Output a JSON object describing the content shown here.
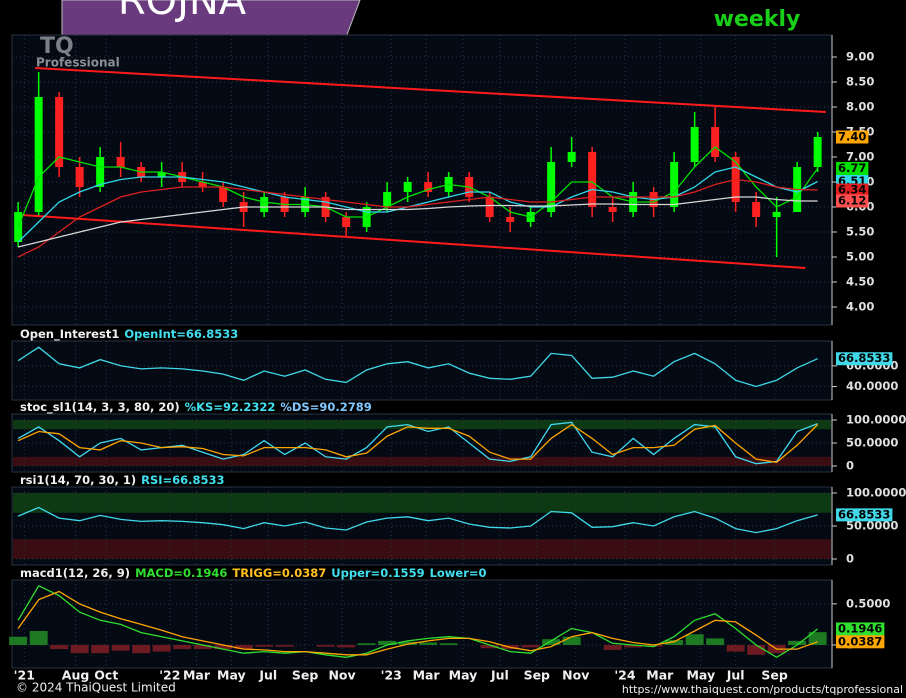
{
  "header": {
    "symbol": "ROJNA",
    "period": "weekly"
  },
  "logo": {
    "mark": "TQ",
    "text": "Professional"
  },
  "footer": {
    "copyright": "© 2024 ThaiQuest Limited",
    "url": "https://www.thaiquest.com/products/tqprofessional"
  },
  "chart_data": [
    {
      "type": "candlestick",
      "up_color": "#00ff00",
      "down_color": "#ff2020",
      "close_label": "7.40",
      "close_label_color": "#ffa500",
      "x": [
        0,
        1,
        2,
        3,
        4,
        5,
        6,
        7,
        8,
        9,
        10,
        11,
        12,
        13,
        14,
        15,
        16,
        17,
        18,
        19,
        20,
        21,
        22,
        23,
        24,
        25,
        26,
        27,
        28,
        29,
        30,
        31,
        32,
        33,
        34,
        35,
        36,
        37,
        38,
        39
      ],
      "xlim": [
        -0.3,
        39.7
      ],
      "ylim": [
        3.64,
        9.44
      ],
      "yticks": [
        {
          "value": 9,
          "label": "9.00"
        },
        {
          "value": 8.5,
          "label": "8.50"
        },
        {
          "value": 8,
          "label": "8.00"
        },
        {
          "value": 7.5,
          "label": "7.50"
        },
        {
          "value": 7,
          "label": "7.00"
        },
        {
          "value": 6.5,
          "label": "6.50"
        },
        {
          "value": 6,
          "label": "6.00"
        },
        {
          "value": 5.5,
          "label": "5.50"
        },
        {
          "value": 5,
          "label": "5.00"
        },
        {
          "value": 4.5,
          "label": "4.50"
        },
        {
          "value": 4,
          "label": "4.00"
        }
      ],
      "open": [
        5.3,
        5.9,
        8.2,
        6.8,
        6.4,
        7.0,
        6.8,
        6.6,
        6.7,
        6.5,
        6.4,
        6.1,
        5.9,
        6.2,
        5.9,
        6.2,
        5.8,
        5.6,
        6.0,
        6.3,
        6.5,
        6.3,
        6.6,
        6.2,
        5.8,
        5.7,
        5.9,
        6.9,
        7.1,
        6.0,
        5.9,
        6.3,
        6.0,
        6.9,
        7.6,
        7.0,
        6.1,
        5.8,
        5.9,
        6.8
      ],
      "high": [
        6.1,
        8.7,
        8.3,
        7.0,
        7.2,
        7.3,
        6.9,
        6.9,
        6.9,
        6.7,
        6.5,
        6.3,
        6.3,
        6.3,
        6.4,
        6.3,
        5.9,
        6.1,
        6.5,
        6.6,
        6.7,
        6.7,
        6.7,
        6.3,
        6.0,
        6.0,
        7.2,
        7.4,
        7.2,
        6.2,
        6.5,
        6.4,
        7.1,
        7.9,
        8.0,
        7.1,
        6.3,
        6.2,
        6.9,
        7.5
      ],
      "low": [
        5.2,
        5.8,
        6.6,
        6.2,
        6.3,
        6.6,
        6.5,
        6.4,
        6.4,
        6.3,
        6.0,
        5.6,
        5.8,
        5.8,
        5.8,
        5.7,
        5.4,
        5.5,
        5.9,
        6.1,
        6.2,
        6.2,
        6.1,
        5.7,
        5.5,
        5.6,
        5.8,
        6.8,
        5.8,
        5.7,
        5.8,
        5.8,
        5.9,
        6.8,
        6.9,
        5.9,
        5.6,
        5.0,
        5.9,
        6.7
      ],
      "close": [
        5.9,
        8.2,
        6.8,
        6.4,
        7.0,
        6.8,
        6.6,
        6.7,
        6.5,
        6.4,
        6.1,
        5.9,
        6.2,
        5.9,
        6.2,
        5.8,
        5.6,
        6.0,
        6.3,
        6.5,
        6.3,
        6.6,
        6.2,
        5.8,
        5.7,
        5.9,
        6.9,
        7.1,
        6.0,
        5.9,
        6.3,
        6.0,
        6.9,
        7.6,
        7.0,
        6.1,
        5.8,
        5.9,
        6.8,
        7.4
      ],
      "series": [
        {
          "color": "#00e000",
          "last_label": "6.77",
          "values": [
            5.6,
            6.6,
            7.0,
            6.9,
            6.8,
            6.8,
            6.7,
            6.7,
            6.6,
            6.5,
            6.4,
            6.2,
            6.1,
            6.05,
            6.05,
            6.0,
            5.8,
            5.8,
            6.0,
            6.2,
            6.35,
            6.45,
            6.4,
            6.2,
            5.9,
            5.8,
            6.1,
            6.5,
            6.5,
            6.2,
            6.1,
            6.1,
            6.3,
            6.8,
            7.2,
            6.9,
            6.4,
            6.0,
            6.2,
            6.77
          ]
        },
        {
          "color": "#30d8e8",
          "last_label": "6.51",
          "values": [
            5.3,
            5.7,
            6.1,
            6.3,
            6.45,
            6.55,
            6.6,
            6.6,
            6.6,
            6.55,
            6.5,
            6.4,
            6.3,
            6.2,
            6.15,
            6.1,
            6.0,
            5.9,
            5.9,
            6.0,
            6.1,
            6.2,
            6.3,
            6.3,
            6.1,
            6.0,
            6.0,
            6.2,
            6.35,
            6.3,
            6.2,
            6.15,
            6.2,
            6.4,
            6.7,
            6.8,
            6.6,
            6.4,
            6.3,
            6.51
          ]
        },
        {
          "color": "#e02020",
          "last_label": "6.34",
          "values": [
            5.0,
            5.2,
            5.5,
            5.8,
            6.0,
            6.2,
            6.3,
            6.35,
            6.4,
            6.4,
            6.4,
            6.35,
            6.3,
            6.25,
            6.2,
            6.15,
            6.1,
            6.05,
            6.0,
            6.0,
            6.05,
            6.1,
            6.15,
            6.2,
            6.15,
            6.1,
            6.1,
            6.15,
            6.2,
            6.2,
            6.2,
            6.2,
            6.2,
            6.3,
            6.45,
            6.55,
            6.5,
            6.4,
            6.35,
            6.34
          ]
        },
        {
          "color": "#d8d8d8",
          "last_label": "6.12",
          "label_color": "#ff5050",
          "values": [
            5.2,
            5.3,
            5.4,
            5.5,
            5.6,
            5.7,
            5.75,
            5.8,
            5.85,
            5.9,
            5.95,
            6.0,
            6.0,
            6.0,
            6.0,
            6.0,
            5.95,
            5.95,
            5.95,
            5.95,
            5.97,
            6.0,
            6.02,
            6.03,
            6.03,
            6.02,
            6.02,
            6.04,
            6.06,
            6.06,
            6.05,
            6.05,
            6.05,
            6.1,
            6.15,
            6.2,
            6.2,
            6.15,
            6.12,
            6.12
          ]
        }
      ],
      "trendlines": [
        {
          "color": "#ff1a1a",
          "x": [
            0.83,
            39.4
          ],
          "y": [
            8.78,
            7.9
          ]
        },
        {
          "color": "#ff1a1a",
          "x": [
            0.2,
            38.4
          ],
          "y": [
            5.84,
            4.78
          ]
        }
      ]
    },
    {
      "type": "line",
      "title_parts": [
        {
          "text": "Open_Interest1",
          "color": "#f0f0f0"
        },
        {
          "text": "OpenInt=66.8533",
          "color": "#40e0f0"
        }
      ],
      "ylim": [
        27,
        84
      ],
      "yticks": [
        {
          "value": 60,
          "label": "60.0000"
        },
        {
          "value": 40,
          "label": "40.0000"
        }
      ],
      "series": [
        {
          "color": "#40d8e8",
          "box": true,
          "values": [
            65,
            78,
            62,
            58,
            66,
            60,
            57,
            58,
            57,
            55,
            52,
            46,
            55,
            50,
            56,
            47,
            44,
            56,
            62,
            64,
            58,
            62,
            53,
            48,
            47,
            50,
            72,
            70,
            48,
            49,
            55,
            50,
            64,
            72,
            62,
            46,
            40,
            46,
            58,
            66.8533
          ]
        }
      ]
    },
    {
      "type": "line",
      "title_parts": [
        {
          "text": "stoc_sl1(14, 3, 3, 80, 20)",
          "color": "#f0f0f0"
        },
        {
          "text": "%KS=92.2322",
          "color": "#40e0f0"
        },
        {
          "text": "%DS=90.2789",
          "color": "#80c8ff"
        }
      ],
      "ylim": [
        -13,
        113
      ],
      "yticks": [
        {
          "value": 100,
          "label": "100.0000"
        },
        {
          "value": 50,
          "label": "50.0000"
        },
        0
      ],
      "bands": [
        {
          "from": 80,
          "to": 100,
          "color": "#0d3a12"
        },
        {
          "from": 0,
          "to": 20,
          "color": "#3a0d12"
        }
      ],
      "series": [
        {
          "color": "#40d8f0",
          "values": [
            60,
            85,
            55,
            20,
            50,
            60,
            35,
            40,
            45,
            30,
            15,
            25,
            55,
            25,
            50,
            20,
            15,
            40,
            85,
            90,
            75,
            85,
            50,
            15,
            10,
            20,
            90,
            95,
            30,
            20,
            60,
            25,
            60,
            90,
            85,
            20,
            5,
            10,
            75,
            92.2322
          ]
        },
        {
          "color": "#ffa500",
          "values": [
            55,
            75,
            70,
            40,
            35,
            55,
            50,
            40,
            42,
            38,
            25,
            22,
            40,
            40,
            40,
            35,
            20,
            28,
            65,
            85,
            82,
            82,
            65,
            30,
            15,
            15,
            60,
            90,
            60,
            25,
            40,
            40,
            45,
            80,
            88,
            50,
            15,
            8,
            45,
            90.2789
          ]
        }
      ]
    },
    {
      "type": "line",
      "title_parts": [
        {
          "text": "rsi1(14, 70, 30, 1)",
          "color": "#f0f0f0"
        },
        {
          "text": "RSI=66.8533",
          "color": "#40e0f0"
        }
      ],
      "ylim": [
        -9.1,
        109.1
      ],
      "yticks": [
        {
          "value": 100,
          "label": "100.0000"
        },
        {
          "value": 50,
          "label": "50.0000"
        },
        0
      ],
      "bands": [
        {
          "from": 70,
          "to": 100,
          "color": "#0d3a12"
        },
        {
          "from": 0,
          "to": 30,
          "color": "#3a0d12"
        }
      ],
      "series": [
        {
          "color": "#40d8e8",
          "box": true,
          "values": [
            65,
            78,
            62,
            58,
            66,
            60,
            57,
            58,
            57,
            55,
            52,
            46,
            55,
            50,
            56,
            47,
            44,
            56,
            62,
            64,
            58,
            62,
            53,
            48,
            47,
            50,
            72,
            70,
            48,
            49,
            55,
            50,
            64,
            72,
            62,
            46,
            40,
            46,
            58,
            66.8533
          ]
        }
      ]
    },
    {
      "type": "line",
      "title_parts": [
        {
          "text": "macd1(12, 26, 9)",
          "color": "#f0f0f0"
        },
        {
          "text": "MACD=0.1946",
          "color": "#30e030"
        },
        {
          "text": "TRIGG=0.0387",
          "color": "#ffc020"
        },
        {
          "text": "Upper=0.1559",
          "color": "#40e0f0"
        },
        {
          "text": "Lower=0",
          "color": "#40e0f0"
        }
      ],
      "ylim": [
        -0.28,
        0.79
      ],
      "yticks": [
        {
          "value": 0.5,
          "label": "0.5000"
        },
        0
      ],
      "xticks": [
        {
          "value": 0.3,
          "label": "'21"
        },
        {
          "value": 2.8,
          "label": "Aug"
        },
        {
          "value": 4.3,
          "label": "Oct"
        },
        {
          "value": 7.4,
          "label": "'22"
        },
        {
          "value": 8.7,
          "label": "Mar"
        },
        {
          "value": 10.4,
          "label": "May"
        },
        {
          "value": 12.2,
          "label": "Jul"
        },
        {
          "value": 14,
          "label": "Sep"
        },
        {
          "value": 15.8,
          "label": "Nov"
        },
        {
          "value": 18.2,
          "label": "'23"
        },
        {
          "value": 19.9,
          "label": "Mar"
        },
        {
          "value": 21.7,
          "label": "May"
        },
        {
          "value": 23.5,
          "label": "Jul"
        },
        {
          "value": 25.3,
          "label": "Sep"
        },
        {
          "value": 27.2,
          "label": "Nov"
        },
        {
          "value": 29.6,
          "label": "'24"
        },
        {
          "value": 31.3,
          "label": "Mar"
        },
        {
          "value": 33.3,
          "label": "May"
        },
        {
          "value": 35,
          "label": "Jul"
        },
        {
          "value": 36.9,
          "label": "Sep"
        }
      ],
      "series": [
        {
          "kind": "bar",
          "color": "#1d7a22",
          "neg_color": "#6e1a22",
          "values": [
            0.1,
            0.17,
            -0.05,
            -0.1,
            -0.1,
            -0.07,
            -0.1,
            -0.08,
            -0.05,
            -0.05,
            -0.05,
            -0.05,
            -0.02,
            -0.02,
            0,
            -0.02,
            -0.03,
            0.02,
            0.05,
            0.04,
            0.03,
            0.02,
            0,
            -0.04,
            -0.05,
            -0.03,
            0.07,
            0.1,
            0,
            -0.06,
            -0.03,
            -0.02,
            0.06,
            0.13,
            0.08,
            -0.08,
            -0.12,
            -0.1,
            0.05,
            0.156
          ]
        },
        {
          "color": "#30e030",
          "box": true,
          "values": [
            0.3,
            0.72,
            0.6,
            0.4,
            0.3,
            0.25,
            0.15,
            0.1,
            0.05,
            0,
            -0.05,
            -0.1,
            -0.08,
            -0.1,
            -0.08,
            -0.12,
            -0.15,
            -0.1,
            0,
            0.05,
            0.08,
            0.1,
            0.08,
            0,
            -0.08,
            -0.1,
            0.05,
            0.2,
            0.15,
            0.02,
            0,
            -0.02,
            0.1,
            0.3,
            0.38,
            0.2,
            0,
            -0.15,
            0,
            0.1946
          ]
        },
        {
          "color": "#ffa500",
          "box": true,
          "values": [
            0.2,
            0.55,
            0.65,
            0.5,
            0.4,
            0.32,
            0.25,
            0.18,
            0.1,
            0.05,
            0,
            -0.05,
            -0.06,
            -0.08,
            -0.08,
            -0.1,
            -0.12,
            -0.12,
            -0.05,
            0.01,
            0.05,
            0.08,
            0.08,
            0.04,
            -0.03,
            -0.07,
            -0.02,
            0.1,
            0.15,
            0.08,
            0.03,
            0,
            0.04,
            0.17,
            0.3,
            0.28,
            0.12,
            -0.05,
            -0.05,
            0.0387
          ]
        }
      ]
    }
  ]
}
